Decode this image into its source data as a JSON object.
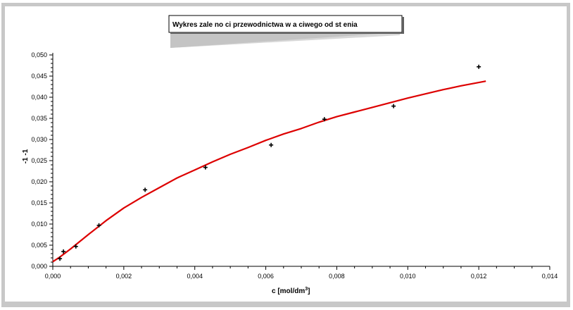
{
  "chart_data": {
    "type": "scatter",
    "title": "Wykres zale no ci przewodnictwa w a ciwego od st enia",
    "xlabel": "c [mol/dm",
    "xlabel_sup": "3",
    "xlabel_end": "]",
    "ylabel": "-1 -1",
    "xlim": [
      0,
      0.014
    ],
    "ylim": [
      0,
      0.05
    ],
    "x_ticks": [
      "0,000",
      "0,002",
      "0,004",
      "0,006",
      "0,008",
      "0,010",
      "0,012",
      "0,014"
    ],
    "y_ticks": [
      "0,000",
      "0,005",
      "0,010",
      "0,015",
      "0,020",
      "0,025",
      "0,030",
      "0,035",
      "0,040",
      "0,045",
      "0,050"
    ],
    "grid": false,
    "series": [
      {
        "type": "scatter",
        "marker": "plus",
        "color": "#000000",
        "points": [
          [
            0.0002,
            0.0018
          ],
          [
            0.0003,
            0.0035
          ],
          [
            0.00065,
            0.0047
          ],
          [
            0.0013,
            0.0097
          ],
          [
            0.0026,
            0.0181
          ],
          [
            0.0043,
            0.0234
          ],
          [
            0.00615,
            0.0287
          ],
          [
            0.00765,
            0.0348
          ],
          [
            0.0096,
            0.0379
          ],
          [
            0.012,
            0.0472
          ]
        ]
      },
      {
        "type": "line",
        "color": "#dd0000",
        "points": [
          [
            0.0,
            0.0011
          ],
          [
            0.0002,
            0.0022
          ],
          [
            0.0005,
            0.0041
          ],
          [
            0.001,
            0.0075
          ],
          [
            0.0015,
            0.0108
          ],
          [
            0.002,
            0.0138
          ],
          [
            0.0025,
            0.0163
          ],
          [
            0.003,
            0.0186
          ],
          [
            0.0035,
            0.0209
          ],
          [
            0.004,
            0.0228
          ],
          [
            0.0045,
            0.0247
          ],
          [
            0.005,
            0.0265
          ],
          [
            0.0055,
            0.0281
          ],
          [
            0.006,
            0.0298
          ],
          [
            0.0065,
            0.0313
          ],
          [
            0.007,
            0.0326
          ],
          [
            0.0075,
            0.0341
          ],
          [
            0.008,
            0.0354
          ],
          [
            0.0085,
            0.0365
          ],
          [
            0.009,
            0.0376
          ],
          [
            0.0095,
            0.0387
          ],
          [
            0.01,
            0.0398
          ],
          [
            0.0105,
            0.0408
          ],
          [
            0.011,
            0.0418
          ],
          [
            0.0115,
            0.0427
          ],
          [
            0.0122,
            0.0438
          ]
        ]
      }
    ]
  }
}
